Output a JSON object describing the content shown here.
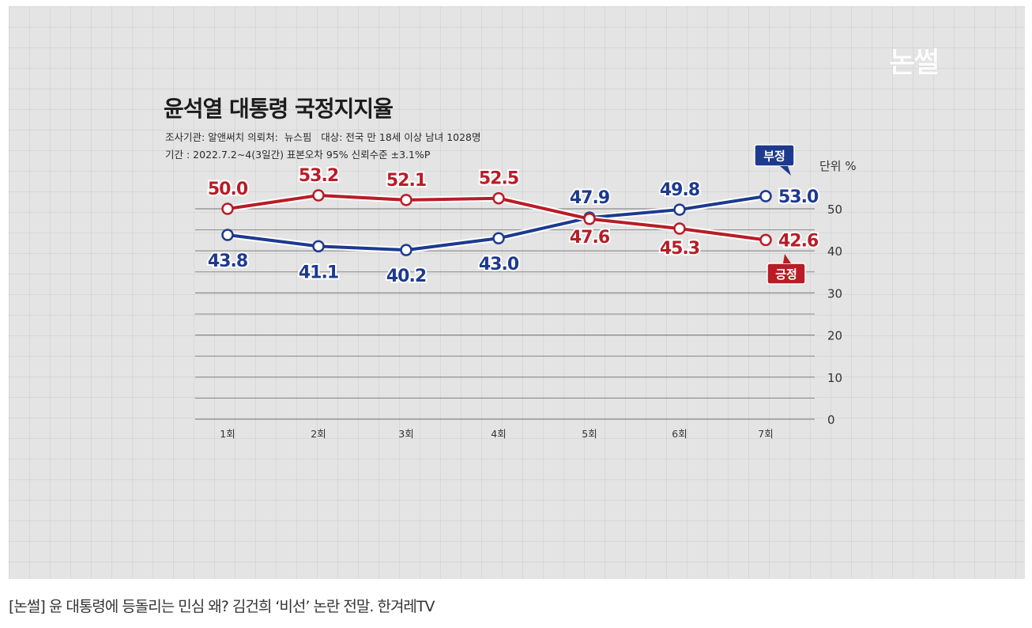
{
  "logo": "논썰",
  "header": {
    "title": "윤석열 대통령 국정지지율",
    "meta_line1": "조사기관: 알앤써치 의뢰처:  뉴스핌   대상: 전국 만 18세 이상 남녀 1028명",
    "meta_line2": "기간 : 2022.7.2~4(3일간) 표본오차 95% 신뢰수준 ±3.1%P"
  },
  "caption": "[논썰] 윤 대통령에 등돌리는 민심 왜? 김건희 ‘비선’ 논란 전말. 한겨레TV",
  "colors": {
    "positive": "#b81d26",
    "negative": "#1d3a8f",
    "grid": "#8a8a8a",
    "background": "#e4e4e4"
  },
  "chart_data": {
    "type": "line",
    "title": "윤석열 대통령 국정지지율",
    "unit_label": "단위 %",
    "categories": [
      "1회",
      "2회",
      "3회",
      "4회",
      "5회",
      "6회",
      "7회"
    ],
    "ylim": [
      0,
      55
    ],
    "yticks": [
      0,
      10,
      20,
      30,
      40,
      50
    ],
    "grid": true,
    "series": [
      {
        "name": "긍정",
        "color": "#b81d26",
        "values": [
          50.0,
          53.2,
          52.1,
          52.5,
          47.6,
          45.3,
          42.6
        ],
        "labels": [
          "50.0",
          "53.2",
          "52.1",
          "52.5",
          "47.6",
          "45.3",
          "42.6"
        ]
      },
      {
        "name": "부정",
        "color": "#1d3a8f",
        "values": [
          43.8,
          41.1,
          40.2,
          43.0,
          47.9,
          49.8,
          53.0
        ],
        "labels": [
          "43.8",
          "41.1",
          "40.2",
          "43.0",
          "47.9",
          "49.8",
          "53.0"
        ]
      }
    ]
  }
}
